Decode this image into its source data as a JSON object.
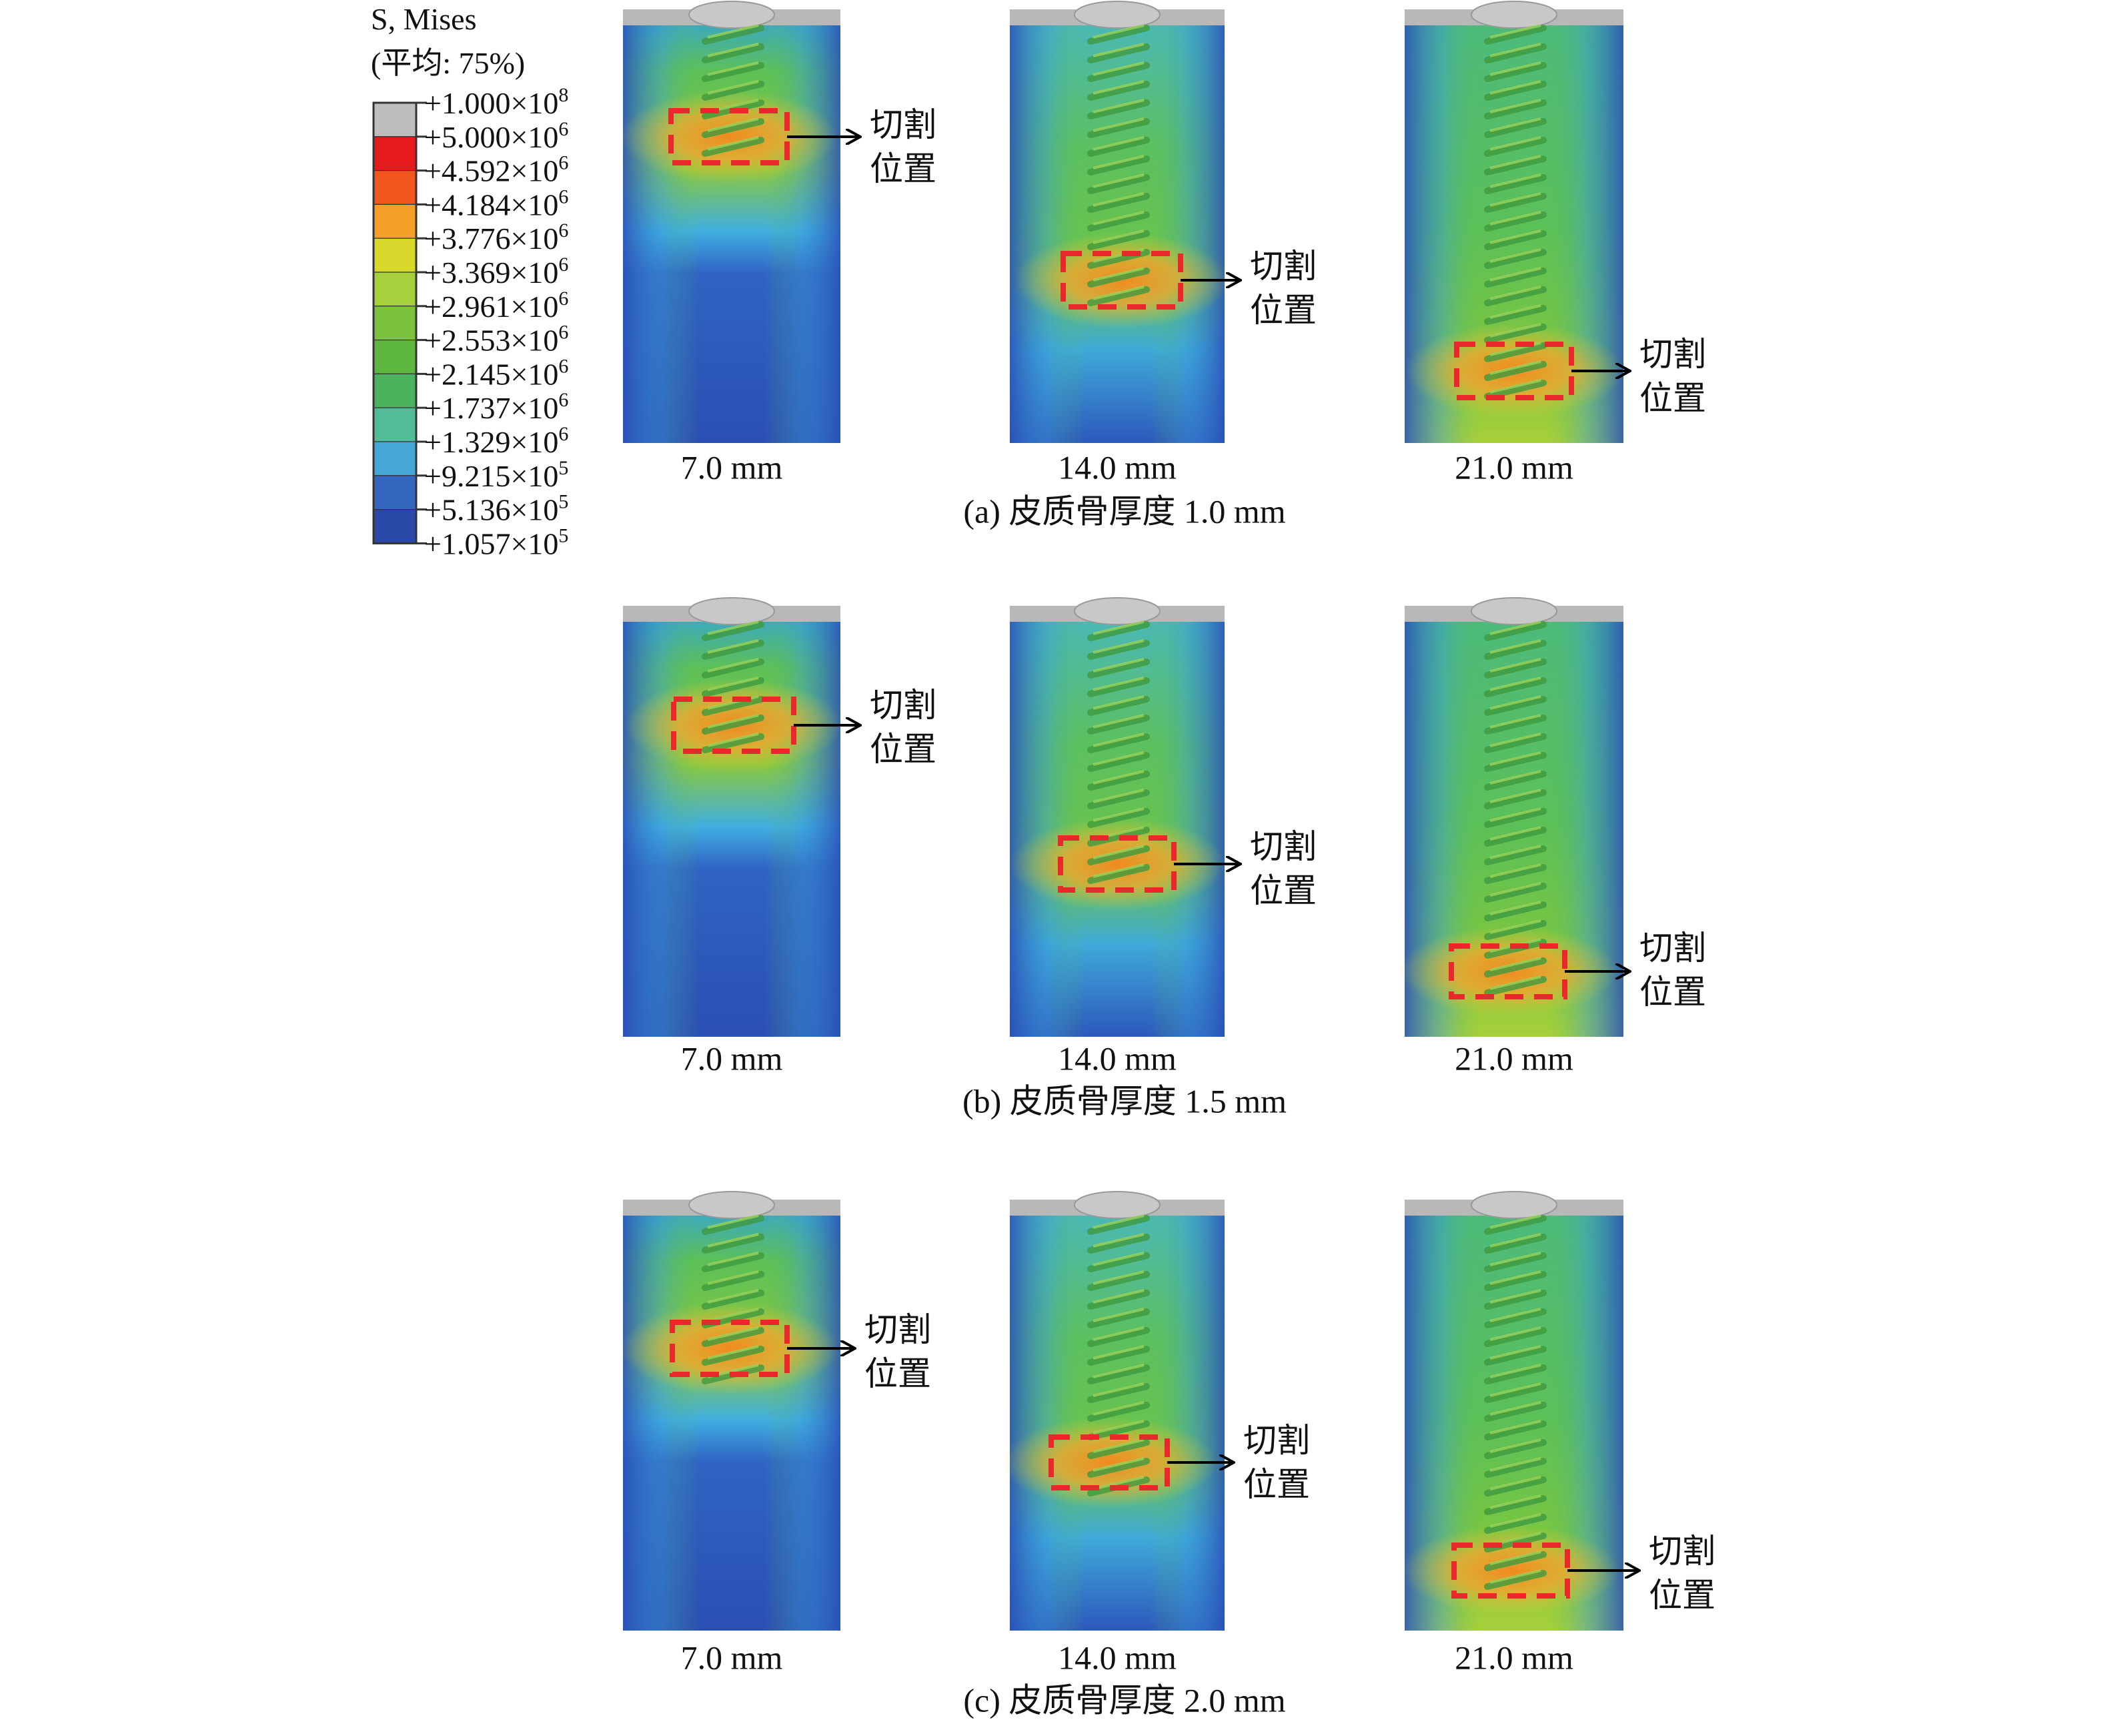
{
  "legend": {
    "title": "S, Mises",
    "subtitle": "(平均: 75%)",
    "labels": [
      {
        "base": "+1.000×10",
        "exp": "8"
      },
      {
        "base": "+5.000×10",
        "exp": "6"
      },
      {
        "base": "+4.592×10",
        "exp": "6"
      },
      {
        "base": "+4.184×10",
        "exp": "6"
      },
      {
        "base": "+3.776×10",
        "exp": "6"
      },
      {
        "base": "+3.369×10",
        "exp": "6"
      },
      {
        "base": "+2.961×10",
        "exp": "6"
      },
      {
        "base": "+2.553×10",
        "exp": "6"
      },
      {
        "base": "+2.145×10",
        "exp": "6"
      },
      {
        "base": "+1.737×10",
        "exp": "6"
      },
      {
        "base": "+1.329×10",
        "exp": "6"
      },
      {
        "base": "+9.215×10",
        "exp": "5"
      },
      {
        "base": "+5.136×10",
        "exp": "5"
      },
      {
        "base": "+1.057×10",
        "exp": "5"
      }
    ]
  },
  "rows": [
    {
      "caption": "(a) 皮质骨厚度 1.0 mm",
      "panels": [
        {
          "label": "7.0 mm",
          "annotation": [
            "切割",
            "位置"
          ]
        },
        {
          "label": "14.0 mm",
          "annotation": [
            "切割",
            "位置"
          ]
        },
        {
          "label": "21.0 mm",
          "annotation": [
            "切割",
            "位置"
          ]
        }
      ]
    },
    {
      "caption": "(b) 皮质骨厚度 1.5 mm",
      "panels": [
        {
          "label": "7.0 mm",
          "annotation": [
            "切割",
            "位置"
          ]
        },
        {
          "label": "14.0 mm",
          "annotation": [
            "切割",
            "位置"
          ]
        },
        {
          "label": "21.0 mm",
          "annotation": [
            "切割",
            "位置"
          ]
        }
      ]
    },
    {
      "caption": "(c) 皮质骨厚度 2.0 mm",
      "panels": [
        {
          "label": "7.0 mm",
          "annotation": [
            "切割",
            "位置"
          ]
        },
        {
          "label": "14.0 mm",
          "annotation": [
            "切割",
            "位置"
          ]
        },
        {
          "label": "21.0 mm",
          "annotation": [
            "切割",
            "位置"
          ]
        }
      ]
    }
  ]
}
